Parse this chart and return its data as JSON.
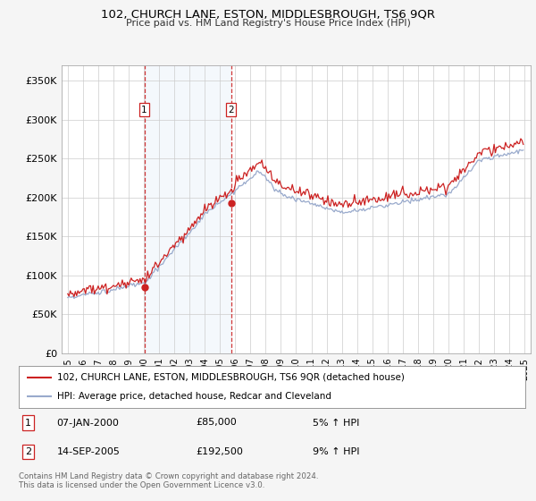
{
  "title": "102, CHURCH LANE, ESTON, MIDDLESBROUGH, TS6 9QR",
  "subtitle": "Price paid vs. HM Land Registry's House Price Index (HPI)",
  "ylim": [
    0,
    370000
  ],
  "yticks": [
    0,
    50000,
    100000,
    150000,
    200000,
    250000,
    300000,
    350000
  ],
  "ytick_labels": [
    "£0",
    "£50K",
    "£100K",
    "£150K",
    "£200K",
    "£250K",
    "£300K",
    "£350K"
  ],
  "xstart_year": 1995,
  "xend_year": 2025,
  "bg_color": "#f5f5f5",
  "plot_bg": "#ffffff",
  "grid_color": "#cccccc",
  "hpi_color": "#99aacc",
  "price_color": "#cc2222",
  "marker1_date": 2000.03,
  "marker2_date": 2005.72,
  "marker1_price": 85000,
  "marker2_price": 192500,
  "legend_line1": "102, CHURCH LANE, ESTON, MIDDLESBROUGH, TS6 9QR (detached house)",
  "legend_line2": "HPI: Average price, detached house, Redcar and Cleveland",
  "ann1_date": "07-JAN-2000",
  "ann1_price": "£85,000",
  "ann1_hpi": "5% ↑ HPI",
  "ann2_date": "14-SEP-2005",
  "ann2_price": "£192,500",
  "ann2_hpi": "9% ↑ HPI",
  "footer": "Contains HM Land Registry data © Crown copyright and database right 2024.\nThis data is licensed under the Open Government Licence v3.0."
}
